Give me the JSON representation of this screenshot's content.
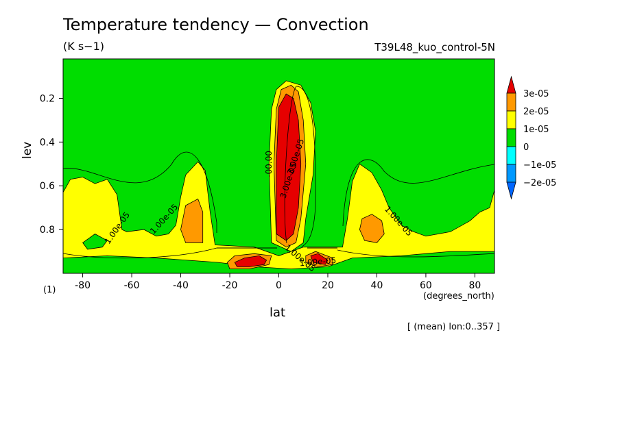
{
  "chart_data": {
    "type": "contour",
    "title": "Temperature tendency — Convection",
    "units": "(K s−1)",
    "run": "T39L48_kuo_control-5N",
    "xlabel": "lat",
    "xunits": "(degrees_north)",
    "ylabel": "lev",
    "yunits": "(1)",
    "footer": "[ (mean) lon:0..357 ]",
    "xlim": [
      -88,
      88
    ],
    "ylim": [
      1.0,
      0.02
    ],
    "x_ticks": [
      -80,
      -60,
      -40,
      -20,
      0,
      20,
      40,
      60,
      80
    ],
    "y_ticks": [
      0.2,
      0.4,
      0.6,
      0.8
    ],
    "legend": {
      "labels": [
        "3e-05",
        "2e-05",
        "1e-05",
        "0",
        "−1e-05",
        "−2e-05"
      ],
      "colors": [
        "#e60000",
        "#ff9900",
        "#ffff00",
        "#00dd00",
        "#00ffff",
        "#0099ff",
        "#0066ff"
      ]
    },
    "contour_labels": [
      "1.00e-05",
      "1.00e-05",
      "1.00e-05",
      "1.00e-05",
      "1.00e-05",
      "3.00e-05",
      "3.00e-05",
      "-00.00"
    ],
    "regions": [
      {
        "level": "1e-05",
        "color": "#ffff00",
        "points": [
          [
            -88,
            0.63
          ],
          [
            -85,
            0.57
          ],
          [
            -80,
            0.56
          ],
          [
            -75,
            0.59
          ],
          [
            -70,
            0.57
          ],
          [
            -66,
            0.64
          ],
          [
            -64,
            0.8
          ],
          [
            -62,
            0.81
          ],
          [
            -55,
            0.8
          ],
          [
            -50,
            0.83
          ],
          [
            -45,
            0.82
          ],
          [
            -42,
            0.78
          ],
          [
            -40,
            0.65
          ],
          [
            -38,
            0.55
          ],
          [
            -33,
            0.49
          ],
          [
            -30,
            0.53
          ],
          [
            -28,
            0.72
          ],
          [
            -26,
            0.87
          ],
          [
            -10,
            0.88
          ],
          [
            0,
            0.92
          ],
          [
            10,
            0.88
          ],
          [
            26,
            0.88
          ],
          [
            28,
            0.75
          ],
          [
            30,
            0.58
          ],
          [
            33,
            0.5
          ],
          [
            38,
            0.54
          ],
          [
            42,
            0.62
          ],
          [
            45,
            0.7
          ],
          [
            50,
            0.78
          ],
          [
            55,
            0.81
          ],
          [
            60,
            0.83
          ],
          [
            70,
            0.81
          ],
          [
            78,
            0.76
          ],
          [
            82,
            0.72
          ],
          [
            86,
            0.7
          ],
          [
            88,
            0.62
          ],
          [
            88,
            0.9
          ],
          [
            70,
            0.9
          ],
          [
            50,
            0.92
          ],
          [
            30,
            0.93
          ],
          [
            20,
            0.97
          ],
          [
            5,
            0.98
          ],
          [
            -10,
            0.97
          ],
          [
            -25,
            0.95
          ],
          [
            -50,
            0.93
          ],
          [
            -70,
            0.92
          ],
          [
            -88,
            0.93
          ]
        ]
      },
      {
        "level": "1e-05",
        "color": "#ffff00",
        "points": [
          [
            -3,
            0.86
          ],
          [
            -4,
            0.5
          ],
          [
            -3,
            0.25
          ],
          [
            -1,
            0.16
          ],
          [
            3,
            0.12
          ],
          [
            9,
            0.14
          ],
          [
            13,
            0.22
          ],
          [
            15,
            0.35
          ],
          [
            14,
            0.55
          ],
          [
            11,
            0.75
          ],
          [
            10,
            0.86
          ],
          [
            5,
            0.9
          ]
        ]
      },
      {
        "level": "0",
        "color": "#00dd00",
        "points": [
          [
            -80,
            0.86
          ],
          [
            -75,
            0.82
          ],
          [
            -70,
            0.85
          ],
          [
            -72,
            0.88
          ],
          [
            -78,
            0.89
          ]
        ]
      },
      {
        "level": "2e-05",
        "color": "#ff9900",
        "points": [
          [
            -38,
            0.69
          ],
          [
            -33,
            0.66
          ],
          [
            -31,
            0.72
          ],
          [
            -31,
            0.86
          ],
          [
            -38,
            0.86
          ],
          [
            -40,
            0.8
          ]
        ]
      },
      {
        "level": "2e-05",
        "color": "#ff9900",
        "points": [
          [
            34,
            0.75
          ],
          [
            38,
            0.73
          ],
          [
            42,
            0.76
          ],
          [
            43,
            0.82
          ],
          [
            40,
            0.86
          ],
          [
            35,
            0.85
          ],
          [
            33,
            0.8
          ]
        ]
      },
      {
        "level": "2e-05",
        "color": "#ff9900",
        "points": [
          [
            -1,
            0.85
          ],
          [
            -2,
            0.5
          ],
          [
            -1,
            0.25
          ],
          [
            1,
            0.16
          ],
          [
            5,
            0.14
          ],
          [
            8,
            0.17
          ],
          [
            10,
            0.3
          ],
          [
            11,
            0.5
          ],
          [
            9,
            0.75
          ],
          [
            7,
            0.86
          ],
          [
            3,
            0.88
          ]
        ]
      },
      {
        "level": "2e-05",
        "color": "#ff9900",
        "points": [
          [
            -21,
            0.95
          ],
          [
            -18,
            0.92
          ],
          [
            -10,
            0.91
          ],
          [
            -3,
            0.92
          ],
          [
            -4,
            0.96
          ],
          [
            -12,
            0.98
          ],
          [
            -20,
            0.98
          ]
        ]
      },
      {
        "level": "2e-05",
        "color": "#ff9900",
        "points": [
          [
            11,
            0.92
          ],
          [
            15,
            0.9
          ],
          [
            22,
            0.93
          ],
          [
            22,
            0.96
          ],
          [
            16,
            0.97
          ],
          [
            11,
            0.95
          ]
        ]
      },
      {
        "level": "3e-05",
        "color": "#e60000",
        "points": [
          [
            -1,
            0.82
          ],
          [
            -1,
            0.5
          ],
          [
            0,
            0.24
          ],
          [
            3,
            0.18
          ],
          [
            6,
            0.2
          ],
          [
            8,
            0.3
          ],
          [
            9,
            0.5
          ],
          [
            8,
            0.7
          ],
          [
            6,
            0.82
          ],
          [
            3,
            0.85
          ]
        ]
      },
      {
        "level": "3e-05",
        "color": "#e60000",
        "points": [
          [
            -18,
            0.95
          ],
          [
            -14,
            0.93
          ],
          [
            -8,
            0.92
          ],
          [
            -5,
            0.94
          ],
          [
            -6,
            0.96
          ],
          [
            -12,
            0.97
          ],
          [
            -17,
            0.97
          ]
        ]
      },
      {
        "level": "3e-05",
        "color": "#e60000",
        "points": [
          [
            13,
            0.92
          ],
          [
            16,
            0.91
          ],
          [
            20,
            0.94
          ],
          [
            19,
            0.96
          ],
          [
            14,
            0.95
          ]
        ]
      }
    ]
  }
}
